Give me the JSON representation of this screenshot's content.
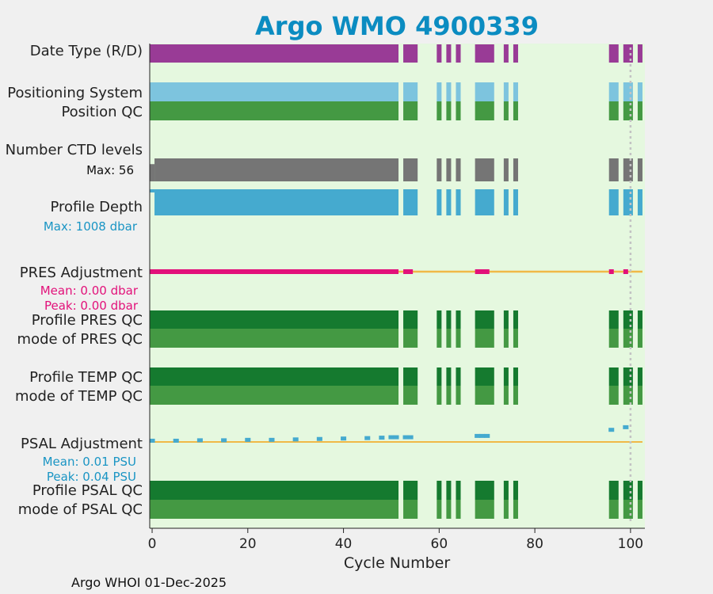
{
  "title": "Argo WMO 4900339",
  "footer": "Argo WHOI 01-Dec-2025",
  "colors": {
    "page_bg": "#f0f0f0",
    "plot_bg": "#e5f8df",
    "title": "#0b8cc1",
    "date_type": "#993b96",
    "positioning": "#7dc4de",
    "qc_light": "#449943",
    "qc_dark": "#157a2f",
    "ctd": "#757575",
    "depth": "#45aacf",
    "pres_adj": "#e2117a",
    "psal_adj": "#45aacf",
    "zero_line": "#f0b947",
    "dotted": "#c3c3c3",
    "annot_depth": "#1a95c4",
    "annot_pres": "#e2117a",
    "annot_psal": "#1a95c4"
  },
  "labels": {
    "date_type": "Date Type (R/D)",
    "positioning": "Positioning System",
    "position_qc": "Position QC",
    "ctd_levels": "Number CTD levels",
    "ctd_max": "Max: 56",
    "profile_depth": "Profile Depth",
    "depth_max": "Max: 1008 dbar",
    "pres_adj": "PRES Adjustment",
    "pres_mean": "Mean: 0.00 dbar",
    "pres_peak": "Peak: 0.00 dbar",
    "profile_pres_qc": "Profile PRES QC",
    "mode_pres_qc": "mode of PRES QC",
    "profile_temp_qc": "Profile TEMP QC",
    "mode_temp_qc": "mode of TEMP QC",
    "psal_adj": "PSAL Adjustment",
    "psal_mean": "Mean: 0.01 PSU",
    "psal_peak": "Peak: 0.04 PSU",
    "profile_psal_qc": "Profile PSAL QC",
    "mode_psal_qc": "mode of PSAL QC"
  },
  "chart_data": {
    "type": "timeline",
    "xlabel": "Cycle Number",
    "xlim": [
      -0.5,
      103
    ],
    "xticks": [
      0,
      20,
      40,
      60,
      80,
      100
    ],
    "dotted_marker_cycle": 100,
    "cycle_segments": [
      [
        0,
        51
      ],
      [
        53,
        55
      ],
      [
        60,
        60
      ],
      [
        62,
        62
      ],
      [
        64,
        64
      ],
      [
        68,
        71
      ],
      [
        74,
        74
      ],
      [
        76,
        76
      ],
      [
        96,
        97
      ],
      [
        99,
        100
      ],
      [
        102,
        102
      ]
    ],
    "ctd_levels": {
      "max": 56,
      "values": [
        [
          0,
          0,
          42
        ],
        [
          1,
          51,
          56
        ],
        [
          53,
          55,
          56
        ],
        [
          60,
          60,
          56
        ],
        [
          62,
          62,
          56
        ],
        [
          64,
          64,
          56
        ],
        [
          68,
          71,
          56
        ],
        [
          74,
          74,
          56
        ],
        [
          76,
          76,
          56
        ],
        [
          96,
          97,
          56
        ],
        [
          99,
          100,
          56
        ],
        [
          102,
          102,
          56
        ]
      ]
    },
    "profile_depth": {
      "max_dbar": 1008,
      "values": [
        [
          0,
          0,
          1008
        ],
        [
          1,
          51,
          1008
        ],
        [
          53,
          55,
          1008
        ],
        [
          60,
          60,
          1008
        ],
        [
          62,
          62,
          1008
        ],
        [
          64,
          64,
          1008
        ],
        [
          68,
          71,
          1008
        ],
        [
          74,
          74,
          1008
        ],
        [
          76,
          76,
          1008
        ],
        [
          96,
          97,
          1008
        ],
        [
          99,
          100,
          1008
        ],
        [
          102,
          102,
          1008
        ]
      ]
    },
    "pres_adjustment": {
      "unit": "dbar",
      "mean": 0.0,
      "peak": 0.0,
      "segments": [
        [
          0,
          51
        ],
        [
          53,
          54
        ],
        [
          68,
          70
        ],
        [
          96,
          96
        ],
        [
          99,
          99
        ]
      ]
    },
    "psal_adjustment": {
      "unit": "PSU",
      "mean": 0.01,
      "peak": 0.04,
      "points": [
        [
          0,
          0.001
        ],
        [
          5,
          0.001
        ],
        [
          10,
          0.002
        ],
        [
          15,
          0.002
        ],
        [
          20,
          0.003
        ],
        [
          25,
          0.003
        ],
        [
          30,
          0.004
        ],
        [
          35,
          0.005
        ],
        [
          40,
          0.006
        ],
        [
          45,
          0.007
        ],
        [
          48,
          0.008
        ],
        [
          50,
          0.009
        ],
        [
          51,
          0.009
        ],
        [
          53,
          0.009
        ],
        [
          54,
          0.009
        ],
        [
          68,
          0.012
        ],
        [
          69,
          0.012
        ],
        [
          70,
          0.012
        ],
        [
          96,
          0.026
        ],
        [
          99,
          0.032
        ]
      ]
    }
  }
}
